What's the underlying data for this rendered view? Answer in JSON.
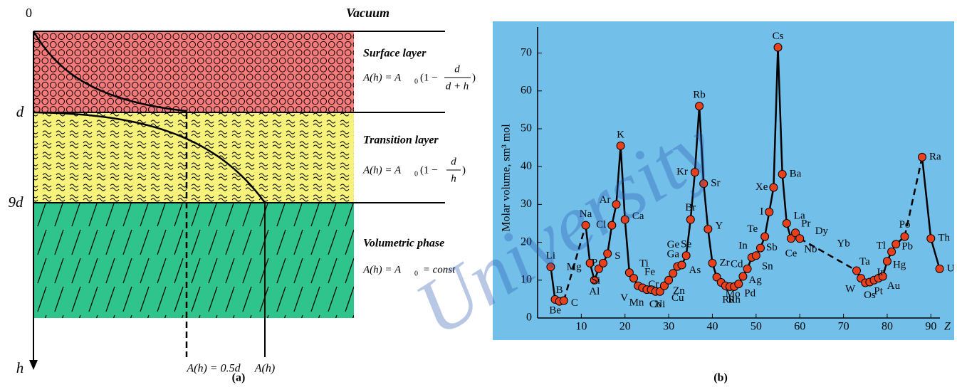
{
  "panel_a": {
    "origin_label": "0",
    "top_label": "Vacuum",
    "depth_labels": [
      "d",
      "9d"
    ],
    "axis_label": "h",
    "bottom_labels": [
      "A(h) = 0.5d",
      "A(h)"
    ],
    "layers": [
      {
        "title": "Surface layer",
        "formula": {
          "lhs": "A(h) = A",
          "sub": "0",
          "open": "(1 −",
          "num": "d",
          "den": "d + h",
          "close": ")"
        }
      },
      {
        "title": "Transition layer",
        "formula": {
          "lhs": "A(h) = A",
          "sub": "0",
          "open": "(1 −",
          "num": "d",
          "den": "h",
          "close": ")"
        }
      },
      {
        "title": "Volumetric phase",
        "formula": {
          "lhs": "A(h) = A",
          "sub": "0",
          "rest": " = const"
        }
      }
    ]
  },
  "chart_data": {
    "type": "line",
    "y_label": "Molar volume, sm³ mol",
    "x_label": "Z",
    "x": [
      3,
      4,
      5,
      6,
      8,
      11,
      12,
      13,
      14,
      15,
      16,
      17,
      18,
      19,
      20,
      21,
      22,
      23,
      24,
      25,
      26,
      27,
      28,
      29,
      30,
      31,
      32,
      33,
      34,
      35,
      36,
      37,
      38,
      39,
      40,
      41,
      42,
      43,
      44,
      45,
      46,
      47,
      48,
      49,
      50,
      51,
      52,
      53,
      54,
      55,
      56,
      57,
      58,
      59,
      60,
      65,
      70,
      73,
      74,
      75,
      76,
      77,
      78,
      79,
      80,
      81,
      82,
      84,
      86,
      88,
      90,
      92
    ],
    "values": [
      13.5,
      4.9,
      4.4,
      4.6,
      null,
      24.5,
      14.5,
      10,
      13,
      14.5,
      17,
      24.5,
      30,
      45.5,
      26,
      12,
      10.5,
      8.5,
      8,
      7.5,
      7.5,
      7,
      7,
      8.5,
      10,
      11.8,
      13.6,
      14,
      16.5,
      26,
      38.5,
      56,
      35.5,
      23.5,
      14.5,
      10.8,
      9.4,
      8.5,
      8.3,
      8.3,
      9,
      11,
      13,
      16,
      16.5,
      18.5,
      21.5,
      28,
      34.5,
      71.5,
      38,
      25,
      21,
      22.5,
      21,
      null,
      null,
      12.5,
      10.5,
      9.3,
      9.5,
      10,
      10.5,
      11,
      15,
      17.5,
      19.5,
      21.5,
      null,
      42.5,
      21,
      13
    ],
    "labels": [
      "Li",
      "Be",
      "B",
      "C",
      null,
      "Na",
      "Mg",
      "Al",
      "Si",
      "P",
      "S",
      "Cl",
      "Ar",
      "K",
      "Ca",
      null,
      "Ti",
      "V",
      "Cr",
      "Mn",
      "Fe",
      "Co",
      "Ni",
      "Cu",
      "Zn",
      "Ga",
      "Ge",
      "As",
      "Se",
      "Br",
      "Kr",
      "Rb",
      "Sr",
      "Y",
      "Zr",
      null,
      "Mo",
      null,
      "Ru",
      "Rh",
      "Pd",
      "Ag",
      "Cd",
      "In",
      "Sn",
      "Sb",
      "Te",
      "I",
      "Xe",
      "Cs",
      "Ba",
      "La",
      "Ce",
      "Pr",
      "Nb",
      "Dy",
      "Yb",
      "Ta",
      "W",
      null,
      "Os",
      "Ir",
      "Pt",
      "Au",
      "Hg",
      "Tl",
      "Pb",
      "Po",
      null,
      "Ra",
      "Th",
      "U"
    ],
    "marker_color": "#e8401c",
    "line_color": "#000000",
    "background": "#72bfea",
    "xlim": [
      0,
      95
    ],
    "ylim": [
      0,
      75
    ],
    "xticks": [
      10,
      20,
      30,
      40,
      50,
      60,
      70,
      80,
      90
    ],
    "yticks": [
      0,
      10,
      20,
      30,
      40,
      50,
      60,
      70
    ]
  },
  "captions": [
    "(a)",
    "(b)"
  ],
  "watermark": "University"
}
